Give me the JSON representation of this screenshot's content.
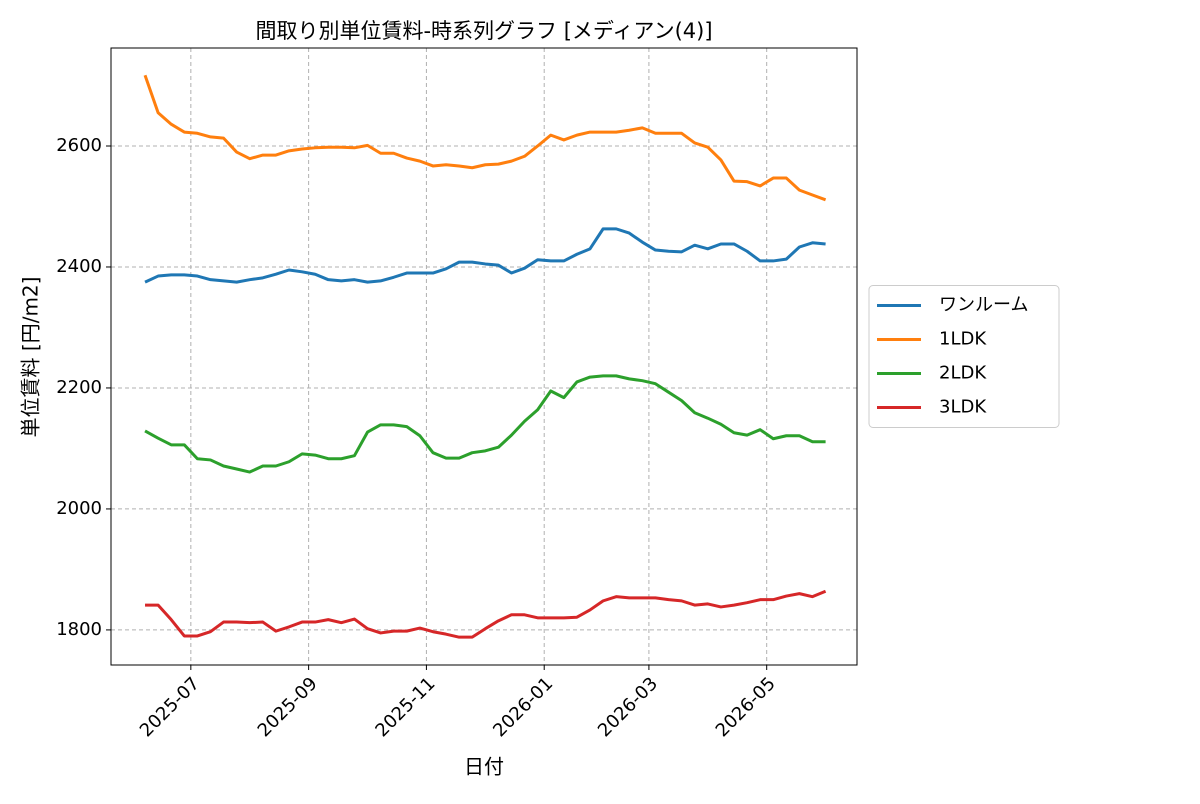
{
  "chart_data": {
    "type": "line",
    "title": "間取り別単位賃料-時系列グラフ [メディアン(4)]",
    "x_label": "日付",
    "y_label": "単位賃料 [円/m2]",
    "x": [
      "2025-06",
      "2025-06",
      "2025-06",
      "2025-06",
      "2025-07",
      "2025-07",
      "2025-07",
      "2025-07",
      "2025-07",
      "2025-08",
      "2025-08",
      "2025-08",
      "2025-08",
      "2025-09",
      "2025-09",
      "2025-09",
      "2025-09",
      "2025-10",
      "2025-10",
      "2025-10",
      "2025-10",
      "2025-10",
      "2025-11",
      "2025-11",
      "2025-11",
      "2025-11",
      "2025-12",
      "2025-12",
      "2025-12",
      "2025-12",
      "2025-12",
      "2026-01",
      "2026-01",
      "2026-01",
      "2026-01",
      "2026-02",
      "2026-02",
      "2026-02",
      "2026-02",
      "2026-03",
      "2026-03",
      "2026-03",
      "2026-03",
      "2026-04",
      "2026-04",
      "2026-04",
      "2026-04",
      "2026-04",
      "2026-05",
      "2026-05",
      "2026-05",
      "2026-05",
      "2026-06"
    ],
    "xticks": [
      "2025-07",
      "2025-09",
      "2025-11",
      "2026-01",
      "2026-03",
      "2026-05"
    ],
    "ylim": [
      1742,
      2762
    ],
    "yticks": [
      1800,
      2000,
      2200,
      2400,
      2600
    ],
    "grid": true,
    "legend": "right",
    "series": [
      {
        "name": "ワンルーム",
        "color": "#1f77b4",
        "values": [
          2375,
          2385,
          2387,
          2387,
          2385,
          2379,
          2377,
          2375,
          2379,
          2382,
          2388,
          2395,
          2392,
          2388,
          2379,
          2377,
          2379,
          2375,
          2377,
          2383,
          2390,
          2390,
          2390,
          2397,
          2408,
          2408,
          2405,
          2403,
          2390,
          2398,
          2412,
          2410,
          2410,
          2421,
          2430,
          2463,
          2463,
          2456,
          2441,
          2428,
          2426,
          2425,
          2436,
          2430,
          2438,
          2438,
          2426,
          2410,
          2410,
          2413,
          2433,
          2440,
          2438
        ]
      },
      {
        "name": "1LDK",
        "color": "#ff7f0e",
        "values": [
          2717,
          2655,
          2636,
          2623,
          2621,
          2615,
          2613,
          2590,
          2579,
          2585,
          2585,
          2592,
          2595,
          2597,
          2598,
          2598,
          2597,
          2601,
          2588,
          2588,
          2580,
          2575,
          2567,
          2569,
          2567,
          2564,
          2569,
          2570,
          2575,
          2583,
          2600,
          2618,
          2610,
          2618,
          2623,
          2623,
          2623,
          2626,
          2630,
          2621,
          2621,
          2621,
          2605,
          2598,
          2577,
          2542,
          2541,
          2534,
          2547,
          2547,
          2527,
          2519,
          2511
        ]
      },
      {
        "name": "2LDK",
        "color": "#2ca02c",
        "values": [
          2129,
          2117,
          2106,
          2106,
          2083,
          2081,
          2071,
          2066,
          2061,
          2071,
          2071,
          2078,
          2091,
          2089,
          2083,
          2083,
          2088,
          2127,
          2139,
          2139,
          2136,
          2121,
          2093,
          2084,
          2084,
          2093,
          2096,
          2102,
          2122,
          2145,
          2164,
          2195,
          2184,
          2210,
          2218,
          2220,
          2220,
          2215,
          2212,
          2207,
          2193,
          2179,
          2159,
          2150,
          2140,
          2126,
          2122,
          2131,
          2116,
          2121,
          2121,
          2111,
          2111
        ]
      },
      {
        "name": "3LDK",
        "color": "#d62728",
        "values": [
          1841,
          1841,
          1817,
          1790,
          1790,
          1797,
          1813,
          1813,
          1812,
          1813,
          1798,
          1805,
          1813,
          1813,
          1817,
          1812,
          1818,
          1802,
          1795,
          1798,
          1798,
          1803,
          1797,
          1793,
          1788,
          1788,
          1802,
          1815,
          1825,
          1825,
          1820,
          1820,
          1820,
          1821,
          1833,
          1848,
          1855,
          1853,
          1853,
          1853,
          1850,
          1848,
          1841,
          1843,
          1838,
          1841,
          1845,
          1850,
          1850,
          1856,
          1860,
          1855,
          1864
        ]
      }
    ]
  }
}
